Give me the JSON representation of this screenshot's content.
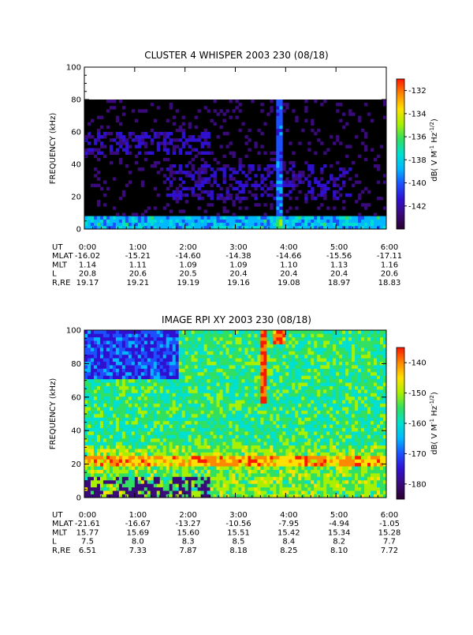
{
  "chart_data": [
    {
      "type": "heatmap",
      "title": "CLUSTER 4 WHISPER 2003 230 (08/18)",
      "ylabel": "FREQUENCY (kHz)",
      "ylim": [
        0,
        100
      ],
      "yticks": [
        "0",
        "20",
        "40",
        "60",
        "80",
        "100"
      ],
      "xticks": [
        "0:00",
        "1:00",
        "2:00",
        "3:00",
        "4:00",
        "5:00",
        "6:00"
      ],
      "colorbar": {
        "label": "dB( V M⁻¹ Hz⁻¹ᐟ²)",
        "label_parts": [
          "dB( V M",
          "-1",
          " Hz",
          "-1/2",
          ")"
        ],
        "range": [
          -144,
          -131
        ],
        "ticks": [
          "-132",
          "-134",
          "-136",
          "-138",
          "-140",
          "-142"
        ]
      },
      "data_ceiling_khz": 80,
      "ephemeris": [
        {
          "label": "UT",
          "values": [
            "0:00",
            "1:00",
            "2:00",
            "3:00",
            "4:00",
            "5:00",
            "6:00"
          ]
        },
        {
          "label": "MLAT",
          "values": [
            "-16.02",
            "-15.21",
            "-14.60",
            "-14.38",
            "-14.66",
            "-15.56",
            "-17.11"
          ]
        },
        {
          "label": "MLT",
          "values": [
            "1.14",
            "1.11",
            "1.09",
            "1.09",
            "1.10",
            "1.13",
            "1.16"
          ]
        },
        {
          "label": "L",
          "values": [
            "20.8",
            "20.6",
            "20.5",
            "20.4",
            "20.4",
            "20.4",
            "20.6"
          ]
        },
        {
          "label": "R,RE",
          "values": [
            "19.17",
            "19.21",
            "19.19",
            "19.16",
            "19.08",
            "18.97",
            "18.83"
          ]
        }
      ]
    },
    {
      "type": "heatmap",
      "title": "IMAGE RPI XY 2003 230 (08/18)",
      "ylabel": "FREQUENCY (kHz)",
      "ylim": [
        0,
        100
      ],
      "yticks": [
        "0",
        "20",
        "40",
        "60",
        "80",
        "100"
      ],
      "xticks": [
        "0:00",
        "1:00",
        "2:00",
        "3:00",
        "4:00",
        "5:00",
        "6:00"
      ],
      "colorbar": {
        "label": "dB( V M⁻¹ Hz⁻¹ᐟ²)",
        "label_parts": [
          "dB( V M",
          "-1",
          " Hz",
          "-1/2",
          ")"
        ],
        "range": [
          -185,
          -135
        ],
        "ticks": [
          "-140",
          "-150",
          "-160",
          "-170",
          "-180"
        ]
      },
      "ephemeris": [
        {
          "label": "UT",
          "values": [
            "0:00",
            "1:00",
            "2:00",
            "3:00",
            "4:00",
            "5:00",
            "6:00"
          ]
        },
        {
          "label": "MLAT",
          "values": [
            "-21.61",
            "-16.67",
            "-13.27",
            "-10.56",
            "-7.95",
            "-4.94",
            "-1.05"
          ]
        },
        {
          "label": "MLT",
          "values": [
            "15.77",
            "15.69",
            "15.60",
            "15.51",
            "15.42",
            "15.34",
            "15.28"
          ]
        },
        {
          "label": "L",
          "values": [
            "7.5",
            "8.0",
            "8.3",
            "8.5",
            "8.4",
            "8.2",
            "7.7"
          ]
        },
        {
          "label": "R,RE",
          "values": [
            "6.51",
            "7.33",
            "7.87",
            "8.18",
            "8.25",
            "8.10",
            "7.72"
          ]
        }
      ]
    }
  ],
  "colors": {
    "background": "#ffffff",
    "no_data": "#000000",
    "colormap": [
      "#2a0030",
      "#3a0a7a",
      "#3010d0",
      "#1c50ff",
      "#00b8ff",
      "#00e0d0",
      "#30e060",
      "#a8f000",
      "#ffe000",
      "#ff8800",
      "#ff1800"
    ]
  }
}
